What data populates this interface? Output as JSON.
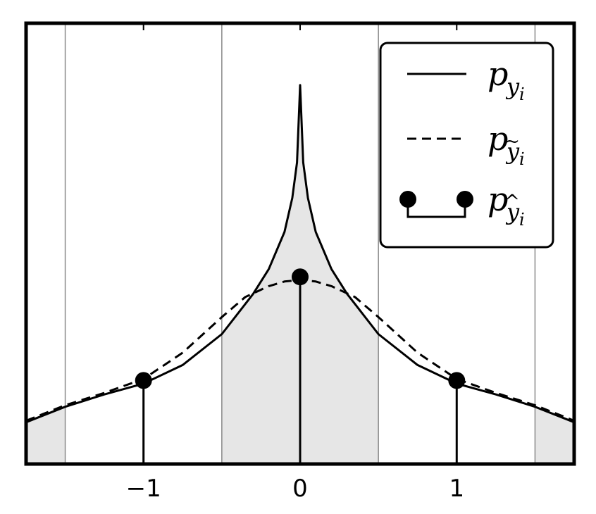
{
  "chart_data": {
    "type": "line",
    "title": "",
    "xlabel": "",
    "ylabel": "",
    "xlim": [
      -1.75,
      1.75
    ],
    "ylim": [
      0,
      0.285
    ],
    "grid": "vertical",
    "grid_x": [
      -1.5,
      -0.5,
      0.5,
      1.5
    ],
    "shaded_x_ranges": [
      [
        -1.75,
        -1.5
      ],
      [
        -0.5,
        0.5
      ],
      [
        1.5,
        1.75
      ]
    ],
    "xticks": [
      -1,
      0,
      1
    ],
    "xtick_labels": [
      "−1",
      "0",
      "1"
    ],
    "legend_position": "top-right",
    "series": [
      {
        "name": "p_{y_i}",
        "style": "solid",
        "x": [
          -1.75,
          -1.5,
          -1.25,
          -1.0,
          -0.75,
          -0.5,
          -0.3,
          -0.2,
          -0.1,
          -0.05,
          -0.02,
          0,
          0.02,
          0.05,
          0.1,
          0.2,
          0.3,
          0.5,
          0.75,
          1.0,
          1.25,
          1.5,
          1.75
        ],
        "y": [
          0.027,
          0.037,
          0.045,
          0.052,
          0.064,
          0.084,
          0.11,
          0.126,
          0.15,
          0.172,
          0.195,
          0.245,
          0.195,
          0.172,
          0.15,
          0.126,
          0.11,
          0.084,
          0.064,
          0.052,
          0.045,
          0.037,
          0.027
        ]
      },
      {
        "name": "p_{̃y_i}",
        "style": "dashed",
        "x": [
          -1.75,
          -1.5,
          -1.25,
          -1.0,
          -0.75,
          -0.5,
          -0.35,
          -0.2,
          -0.1,
          0,
          0.1,
          0.2,
          0.35,
          0.5,
          0.75,
          1.0,
          1.25,
          1.5,
          1.75
        ],
        "y": [
          0.028,
          0.038,
          0.046,
          0.055,
          0.072,
          0.095,
          0.108,
          0.115,
          0.118,
          0.119,
          0.118,
          0.115,
          0.108,
          0.095,
          0.072,
          0.055,
          0.046,
          0.038,
          0.028
        ]
      },
      {
        "name": "p_{̂y_i}",
        "style": "stem",
        "x": [
          -1,
          0,
          1
        ],
        "y": [
          0.054,
          0.121,
          0.054
        ]
      }
    ]
  },
  "legend": {
    "entries": [
      {
        "base": "p",
        "sub": "y",
        "subsub": "i",
        "mark": ""
      },
      {
        "base": "p",
        "sub": "y",
        "subsub": "i",
        "mark": "~"
      },
      {
        "base": "p",
        "sub": "y",
        "subsub": "i",
        "mark": "^"
      }
    ]
  }
}
